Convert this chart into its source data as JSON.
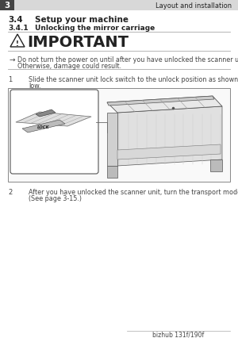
{
  "bg_color": "#ffffff",
  "header_bar_color": "#d8d8d8",
  "header_num": "3",
  "header_right": "Layout and installation",
  "section_num": "3.4",
  "section_title": "Setup your machine",
  "subsection_num": "3.4.1",
  "subsection_title": "Unlocking the mirror carriage",
  "important_title": "IMPORTANT",
  "bullet_arrow": "→",
  "bullet_line1": "Do not turn the power on until after you have unlocked the scanner unit.",
  "bullet_line2": "Otherwise, damage could result.",
  "step1_num": "1",
  "step1_line1": "Slide the scanner unit lock switch to the unlock position as shown be-",
  "step1_line2": "low.",
  "step2_num": "2",
  "step2_line1": "After you have unlocked the scanner unit, turn the transport mode off.",
  "step2_line2": "(See page 3-15.)",
  "footer_text": "bizhub 131f/190f",
  "divider_color": "#aaaaaa",
  "text_color": "#444444",
  "dark_color": "#222222"
}
